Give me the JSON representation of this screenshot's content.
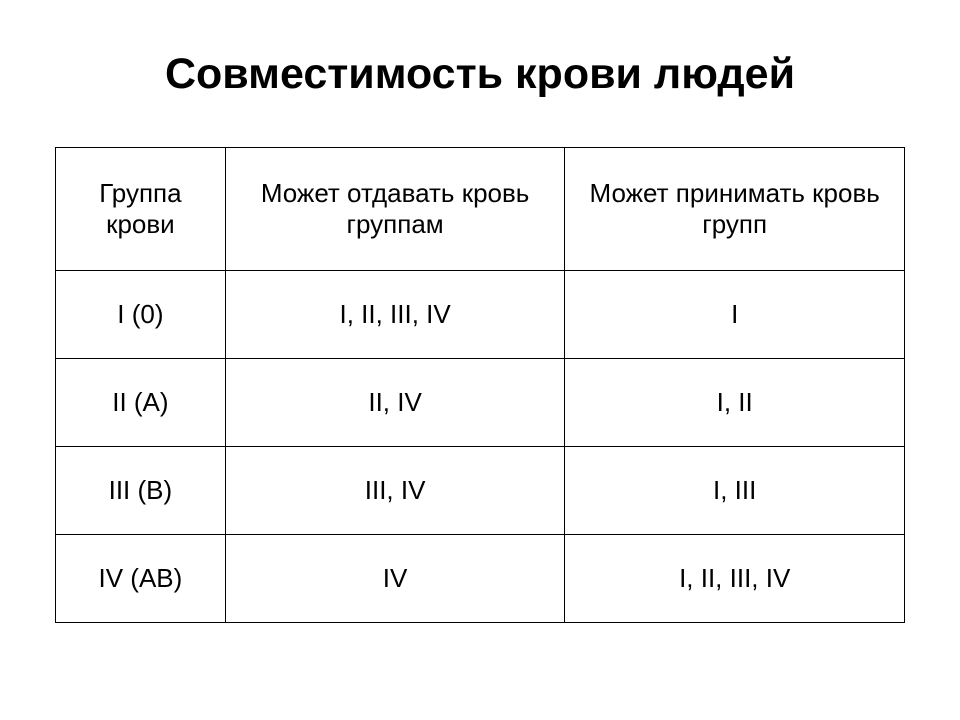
{
  "title": "Совместимость крови людей",
  "table": {
    "columns": [
      "Группа крови",
      "Может отдавать кровь группам",
      "Может принимать кровь групп"
    ],
    "rows": [
      [
        "I (0)",
        "I, II, III, IV",
        "I"
      ],
      [
        "II (A)",
        "II, IV",
        "I, II"
      ],
      [
        "III (B)",
        "III, IV",
        "I, III"
      ],
      [
        "IV (AB)",
        "IV",
        "I, II, III, IV"
      ]
    ],
    "border_color": "#000000",
    "text_color": "#000000",
    "background_color": "#ffffff",
    "header_fontsize": 26,
    "cell_fontsize": 26,
    "title_fontsize": 43,
    "column_widths_pct": [
      20,
      40,
      40
    ]
  }
}
